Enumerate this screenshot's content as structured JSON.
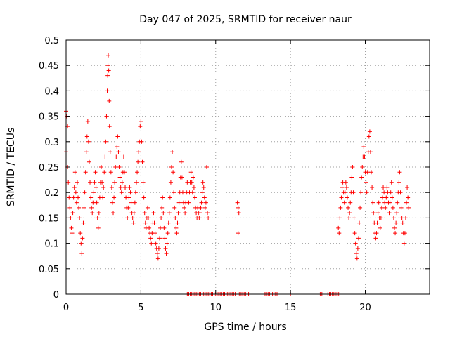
{
  "chart_data": {
    "type": "scatter",
    "title": "Day 047 of 2025, SRMTID for receiver naur",
    "xlabel": "GPS time / hours",
    "ylabel": "SRMTID / TECUs",
    "xlim": [
      0,
      24.3
    ],
    "ylim": [
      0,
      0.5
    ],
    "x_ticks": [
      0,
      5,
      10,
      15,
      20
    ],
    "x_tick_labels": [
      "0",
      "5",
      "10",
      "15",
      "20"
    ],
    "y_ticks": [
      0,
      0.05,
      0.1,
      0.15,
      0.2,
      0.25,
      0.3,
      0.35,
      0.4,
      0.45,
      0.5
    ],
    "y_tick_labels": [
      "0",
      "0.05",
      "0.1",
      "0.15",
      "0.2",
      "0.25",
      "0.3",
      "0.35",
      "0.4",
      "0.45",
      "0.5"
    ],
    "grid": true,
    "marker": "+",
    "color": "#ff0000",
    "series": [
      {
        "name": "SRMTID",
        "points": [
          [
            0.0,
            0.36
          ],
          [
            0.05,
            0.35
          ],
          [
            0.1,
            0.33
          ],
          [
            0.0,
            0.28
          ],
          [
            0.1,
            0.25
          ],
          [
            0.15,
            0.22
          ],
          [
            0.2,
            0.19
          ],
          [
            0.25,
            0.17
          ],
          [
            0.3,
            0.15
          ],
          [
            0.35,
            0.13
          ],
          [
            0.4,
            0.12
          ],
          [
            0.45,
            0.16
          ],
          [
            0.5,
            0.19
          ],
          [
            0.55,
            0.21
          ],
          [
            0.6,
            0.24
          ],
          [
            0.65,
            0.2
          ],
          [
            0.7,
            0.18
          ],
          [
            0.75,
            0.22
          ],
          [
            0.8,
            0.19
          ],
          [
            0.85,
            0.17
          ],
          [
            0.9,
            0.15
          ],
          [
            0.95,
            0.12
          ],
          [
            1.0,
            0.1
          ],
          [
            1.05,
            0.08
          ],
          [
            1.1,
            0.11
          ],
          [
            1.15,
            0.14
          ],
          [
            1.2,
            0.17
          ],
          [
            1.25,
            0.2
          ],
          [
            1.3,
            0.24
          ],
          [
            1.35,
            0.28
          ],
          [
            1.4,
            0.31
          ],
          [
            1.45,
            0.34
          ],
          [
            1.5,
            0.3
          ],
          [
            1.55,
            0.26
          ],
          [
            1.6,
            0.22
          ],
          [
            1.65,
            0.19
          ],
          [
            1.7,
            0.17
          ],
          [
            1.75,
            0.16
          ],
          [
            1.8,
            0.18
          ],
          [
            1.85,
            0.2
          ],
          [
            1.9,
            0.22
          ],
          [
            1.95,
            0.24
          ],
          [
            2.0,
            0.21
          ],
          [
            2.05,
            0.18
          ],
          [
            2.1,
            0.15
          ],
          [
            2.15,
            0.13
          ],
          [
            2.2,
            0.16
          ],
          [
            2.25,
            0.19
          ],
          [
            2.3,
            0.22
          ],
          [
            2.35,
            0.25
          ],
          [
            2.4,
            0.22
          ],
          [
            2.45,
            0.19
          ],
          [
            2.5,
            0.21
          ],
          [
            2.55,
            0.24
          ],
          [
            2.6,
            0.27
          ],
          [
            2.65,
            0.3
          ],
          [
            2.7,
            0.35
          ],
          [
            2.75,
            0.4
          ],
          [
            2.78,
            0.43
          ],
          [
            2.8,
            0.45
          ],
          [
            2.82,
            0.47
          ],
          [
            2.85,
            0.44
          ],
          [
            2.88,
            0.38
          ],
          [
            2.9,
            0.33
          ],
          [
            2.95,
            0.28
          ],
          [
            3.0,
            0.24
          ],
          [
            3.05,
            0.21
          ],
          [
            3.1,
            0.18
          ],
          [
            3.15,
            0.16
          ],
          [
            3.2,
            0.19
          ],
          [
            3.25,
            0.22
          ],
          [
            3.3,
            0.25
          ],
          [
            3.35,
            0.27
          ],
          [
            3.4,
            0.29
          ],
          [
            3.45,
            0.31
          ],
          [
            3.5,
            0.28
          ],
          [
            3.55,
            0.25
          ],
          [
            3.6,
            0.23
          ],
          [
            3.65,
            0.21
          ],
          [
            3.7,
            0.2
          ],
          [
            3.75,
            0.22
          ],
          [
            3.8,
            0.24
          ],
          [
            3.85,
            0.27
          ],
          [
            3.9,
            0.24
          ],
          [
            3.95,
            0.21
          ],
          [
            4.0,
            0.19
          ],
          [
            4.05,
            0.17
          ],
          [
            4.1,
            0.15
          ],
          [
            4.15,
            0.17
          ],
          [
            4.2,
            0.19
          ],
          [
            4.25,
            0.21
          ],
          [
            4.3,
            0.2
          ],
          [
            4.35,
            0.18
          ],
          [
            4.4,
            0.16
          ],
          [
            4.45,
            0.15
          ],
          [
            4.5,
            0.14
          ],
          [
            4.55,
            0.16
          ],
          [
            4.6,
            0.18
          ],
          [
            4.65,
            0.2
          ],
          [
            4.7,
            0.22
          ],
          [
            4.75,
            0.24
          ],
          [
            4.8,
            0.26
          ],
          [
            4.85,
            0.28
          ],
          [
            4.9,
            0.3
          ],
          [
            4.95,
            0.33
          ],
          [
            5.0,
            0.34
          ],
          [
            5.05,
            0.3
          ],
          [
            5.1,
            0.26
          ],
          [
            5.15,
            0.22
          ],
          [
            5.2,
            0.19
          ],
          [
            5.25,
            0.16
          ],
          [
            5.3,
            0.14
          ],
          [
            5.35,
            0.13
          ],
          [
            5.4,
            0.15
          ],
          [
            5.45,
            0.17
          ],
          [
            5.5,
            0.15
          ],
          [
            5.55,
            0.13
          ],
          [
            5.6,
            0.12
          ],
          [
            5.65,
            0.11
          ],
          [
            5.7,
            0.1
          ],
          [
            5.75,
            0.12
          ],
          [
            5.8,
            0.14
          ],
          [
            5.85,
            0.16
          ],
          [
            5.9,
            0.14
          ],
          [
            5.95,
            0.12
          ],
          [
            6.0,
            0.1
          ],
          [
            6.05,
            0.09
          ],
          [
            6.1,
            0.08
          ],
          [
            6.15,
            0.07
          ],
          [
            6.2,
            0.09
          ],
          [
            6.25,
            0.11
          ],
          [
            6.3,
            0.13
          ],
          [
            6.35,
            0.15
          ],
          [
            6.4,
            0.17
          ],
          [
            6.45,
            0.19
          ],
          [
            6.5,
            0.16
          ],
          [
            6.55,
            0.13
          ],
          [
            6.6,
            0.11
          ],
          [
            6.65,
            0.09
          ],
          [
            6.7,
            0.08
          ],
          [
            6.75,
            0.1
          ],
          [
            6.8,
            0.12
          ],
          [
            6.85,
            0.14
          ],
          [
            6.9,
            0.16
          ],
          [
            6.95,
            0.19
          ],
          [
            7.0,
            0.22
          ],
          [
            7.05,
            0.25
          ],
          [
            7.1,
            0.28
          ],
          [
            7.15,
            0.24
          ],
          [
            7.2,
            0.2
          ],
          [
            7.25,
            0.17
          ],
          [
            7.3,
            0.15
          ],
          [
            7.35,
            0.13
          ],
          [
            7.4,
            0.12
          ],
          [
            7.45,
            0.14
          ],
          [
            7.5,
            0.16
          ],
          [
            7.55,
            0.18
          ],
          [
            7.6,
            0.2
          ],
          [
            7.65,
            0.23
          ],
          [
            7.7,
            0.26
          ],
          [
            7.75,
            0.23
          ],
          [
            7.8,
            0.2
          ],
          [
            7.85,
            0.18
          ],
          [
            7.9,
            0.17
          ],
          [
            7.95,
            0.16
          ],
          [
            8.0,
            0.18
          ],
          [
            8.05,
            0.2
          ],
          [
            8.1,
            0.22
          ],
          [
            8.15,
            0.2
          ],
          [
            8.2,
            0.18
          ],
          [
            8.25,
            0.2
          ],
          [
            8.3,
            0.22
          ],
          [
            8.35,
            0.24
          ],
          [
            8.4,
            0.22
          ],
          [
            8.45,
            0.2
          ],
          [
            8.5,
            0.23
          ],
          [
            8.55,
            0.21
          ],
          [
            8.6,
            0.19
          ],
          [
            8.65,
            0.17
          ],
          [
            8.7,
            0.16
          ],
          [
            8.75,
            0.15
          ],
          [
            8.8,
            0.17
          ],
          [
            8.85,
            0.16
          ],
          [
            8.9,
            0.15
          ],
          [
            8.95,
            0.16
          ],
          [
            9.0,
            0.17
          ],
          [
            9.05,
            0.18
          ],
          [
            9.1,
            0.2
          ],
          [
            9.15,
            0.22
          ],
          [
            9.2,
            0.21
          ],
          [
            9.25,
            0.19
          ],
          [
            9.3,
            0.17
          ],
          [
            9.35,
            0.18
          ],
          [
            9.4,
            0.25
          ],
          [
            9.45,
            0.16
          ],
          [
            9.5,
            0.15
          ],
          [
            11.45,
            0.18
          ],
          [
            11.5,
            0.17
          ],
          [
            11.55,
            0.16
          ],
          [
            11.5,
            0.12
          ],
          [
            18.2,
            0.13
          ],
          [
            18.25,
            0.12
          ],
          [
            18.3,
            0.15
          ],
          [
            18.35,
            0.17
          ],
          [
            18.4,
            0.19
          ],
          [
            18.45,
            0.21
          ],
          [
            18.5,
            0.22
          ],
          [
            18.55,
            0.2
          ],
          [
            18.6,
            0.18
          ],
          [
            18.65,
            0.2
          ],
          [
            18.7,
            0.22
          ],
          [
            18.75,
            0.21
          ],
          [
            18.8,
            0.19
          ],
          [
            18.85,
            0.17
          ],
          [
            18.9,
            0.15
          ],
          [
            18.95,
            0.16
          ],
          [
            19.0,
            0.18
          ],
          [
            19.05,
            0.2
          ],
          [
            19.1,
            0.23
          ],
          [
            19.15,
            0.25
          ],
          [
            19.2,
            0.2
          ],
          [
            19.25,
            0.15
          ],
          [
            19.3,
            0.12
          ],
          [
            19.35,
            0.1
          ],
          [
            19.4,
            0.08
          ],
          [
            19.45,
            0.07
          ],
          [
            19.5,
            0.09
          ],
          [
            19.55,
            0.11
          ],
          [
            19.6,
            0.14
          ],
          [
            19.65,
            0.17
          ],
          [
            19.7,
            0.2
          ],
          [
            19.75,
            0.23
          ],
          [
            19.8,
            0.25
          ],
          [
            19.85,
            0.27
          ],
          [
            19.9,
            0.29
          ],
          [
            19.95,
            0.27
          ],
          [
            20.0,
            0.24
          ],
          [
            20.05,
            0.22
          ],
          [
            20.1,
            0.2
          ],
          [
            20.15,
            0.24
          ],
          [
            20.2,
            0.28
          ],
          [
            20.25,
            0.31
          ],
          [
            20.3,
            0.32
          ],
          [
            20.35,
            0.28
          ],
          [
            20.4,
            0.24
          ],
          [
            20.45,
            0.21
          ],
          [
            20.5,
            0.18
          ],
          [
            20.55,
            0.16
          ],
          [
            20.6,
            0.14
          ],
          [
            20.65,
            0.12
          ],
          [
            20.7,
            0.11
          ],
          [
            20.75,
            0.12
          ],
          [
            20.8,
            0.14
          ],
          [
            20.85,
            0.16
          ],
          [
            20.9,
            0.18
          ],
          [
            20.95,
            0.15
          ],
          [
            21.0,
            0.13
          ],
          [
            21.05,
            0.15
          ],
          [
            21.1,
            0.17
          ],
          [
            21.15,
            0.19
          ],
          [
            21.2,
            0.21
          ],
          [
            21.25,
            0.2
          ],
          [
            21.3,
            0.18
          ],
          [
            21.35,
            0.17
          ],
          [
            21.4,
            0.19
          ],
          [
            21.45,
            0.21
          ],
          [
            21.5,
            0.2
          ],
          [
            21.55,
            0.18
          ],
          [
            21.6,
            0.16
          ],
          [
            21.65,
            0.18
          ],
          [
            21.7,
            0.2
          ],
          [
            21.75,
            0.22
          ],
          [
            21.8,
            0.19
          ],
          [
            21.85,
            0.17
          ],
          [
            21.9,
            0.15
          ],
          [
            21.95,
            0.13
          ],
          [
            22.0,
            0.12
          ],
          [
            22.05,
            0.14
          ],
          [
            22.1,
            0.16
          ],
          [
            22.15,
            0.18
          ],
          [
            22.2,
            0.2
          ],
          [
            22.25,
            0.22
          ],
          [
            22.3,
            0.24
          ],
          [
            22.35,
            0.2
          ],
          [
            22.4,
            0.17
          ],
          [
            22.45,
            0.15
          ],
          [
            22.5,
            0.14
          ],
          [
            22.55,
            0.12
          ],
          [
            22.6,
            0.1
          ],
          [
            22.65,
            0.12
          ],
          [
            22.7,
            0.15
          ],
          [
            22.75,
            0.18
          ],
          [
            22.8,
            0.21
          ],
          [
            22.85,
            0.19
          ],
          [
            22.9,
            0.17
          ]
        ],
        "zero_points_x": [
          8.1,
          8.2,
          8.3,
          8.4,
          8.5,
          8.6,
          8.7,
          8.8,
          8.9,
          9.0,
          9.1,
          9.2,
          9.3,
          9.4,
          9.5,
          9.6,
          9.7,
          9.8,
          9.9,
          10.0,
          10.1,
          10.2,
          10.3,
          10.4,
          10.5,
          10.6,
          10.7,
          10.8,
          10.9,
          11.0,
          11.1,
          11.2,
          11.3,
          11.5,
          11.6,
          11.7,
          11.8,
          11.9,
          12.0,
          12.1,
          12.2,
          13.3,
          13.4,
          13.5,
          13.6,
          13.7,
          13.8,
          13.9,
          14.0,
          14.1,
          15.0,
          16.9,
          17.0,
          17.1,
          17.5,
          17.6,
          17.7,
          17.8,
          17.9,
          18.0,
          18.1,
          18.2,
          18.3
        ]
      }
    ]
  }
}
